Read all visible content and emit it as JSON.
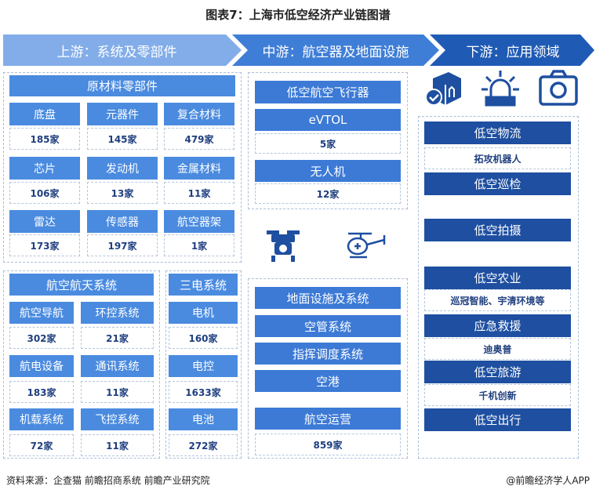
{
  "title": "图表7：上海市低空经济产业链图谱",
  "stages": [
    "上游：系统及零部件",
    "中游：航空器及地面设施",
    "下游：应用领域"
  ],
  "upstream": {
    "materials": {
      "title": "原材料零部件",
      "items": [
        {
          "label": "底盘",
          "count": "185家"
        },
        {
          "label": "元器件",
          "count": "145家"
        },
        {
          "label": "复合材料",
          "count": "479家"
        },
        {
          "label": "芯片",
          "count": "106家"
        },
        {
          "label": "发动机",
          "count": "13家"
        },
        {
          "label": "金属材料",
          "count": "11家"
        },
        {
          "label": "雷达",
          "count": "173家"
        },
        {
          "label": "传感器",
          "count": "197家"
        },
        {
          "label": "航空器架",
          "count": "1家"
        }
      ]
    },
    "aerospace": {
      "title": "航空航天系统",
      "items": [
        {
          "label": "航空导航",
          "count": "302家"
        },
        {
          "label": "环控系统",
          "count": "21家"
        },
        {
          "label": "航电设备",
          "count": "183家"
        },
        {
          "label": "通讯系统",
          "count": "11家"
        },
        {
          "label": "机载系统",
          "count": "72家"
        },
        {
          "label": "飞控系统",
          "count": "11家"
        }
      ]
    },
    "electric": {
      "title": "三电系统",
      "items": [
        {
          "label": "电机",
          "count": "160家"
        },
        {
          "label": "电控",
          "count": "1633家"
        },
        {
          "label": "电池",
          "count": "272家"
        }
      ]
    }
  },
  "midstream": {
    "aircraft": "低空航空飞行器",
    "evtol": "eVTOL",
    "evtol_count": "5家",
    "drone": "无人机",
    "drone_count": "12家",
    "ground": [
      "地面设施及系统",
      "空管系统",
      "指挥调度系统",
      "空港"
    ],
    "ops": "航空运营",
    "ops_count": "859家"
  },
  "downstream": [
    {
      "label": "低空物流",
      "company": "拓攻机器人"
    },
    {
      "label": "低空巡检"
    },
    {
      "label": "低空拍摄"
    },
    {
      "label": "低空农业",
      "company": "巡冠智能、宇清环境等"
    },
    {
      "label": "应急救援",
      "company": "迪奥普"
    },
    {
      "label": "低空旅游",
      "company": "千机创新"
    },
    {
      "label": "低空出行"
    }
  ],
  "footer": {
    "source": "资料来源：企查猫 前瞻招商系统 前瞻产业研究院",
    "brand": "@前瞻经济学人APP"
  },
  "colors": {
    "light": "#7aa7e6",
    "mid": "#3f7ed6",
    "dark": "#1e4fa0"
  }
}
